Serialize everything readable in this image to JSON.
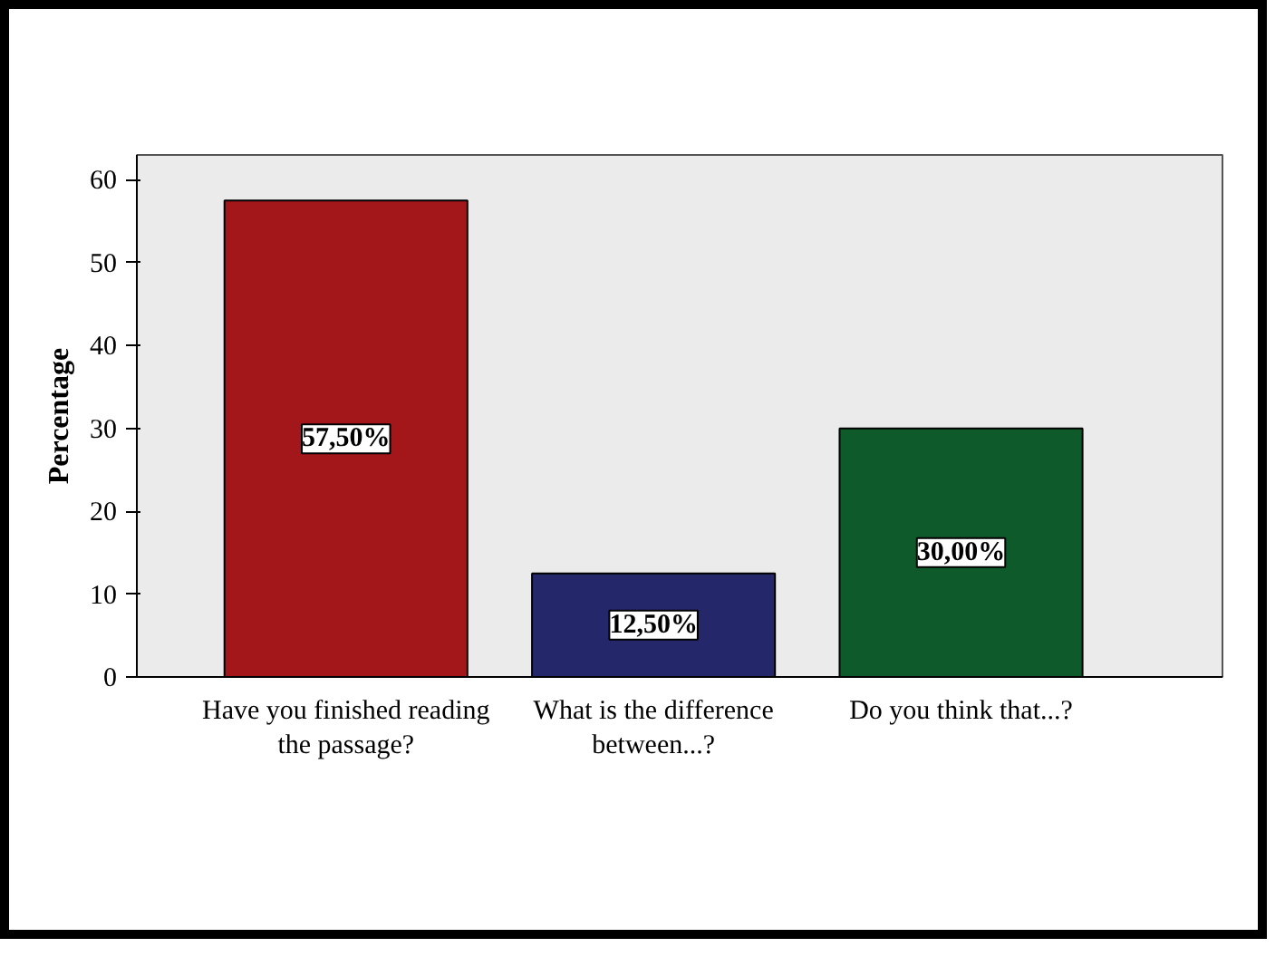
{
  "chart_data": {
    "type": "bar",
    "ylabel": "Percentage",
    "categories": [
      "Have you finished reading\nthe passage?",
      "What is the difference\nbetween...?",
      "Do you think that...?"
    ],
    "values": [
      57.5,
      12.5,
      30.0
    ],
    "colors": [
      "#a3171b",
      "#25276b",
      "#0f5a2b"
    ],
    "value_labels": [
      "57,50%",
      "12,50%",
      "30,00%"
    ],
    "ylim": [
      0,
      63
    ],
    "yticks": [
      0,
      10,
      20,
      30,
      40,
      50,
      60
    ],
    "grid": false
  }
}
